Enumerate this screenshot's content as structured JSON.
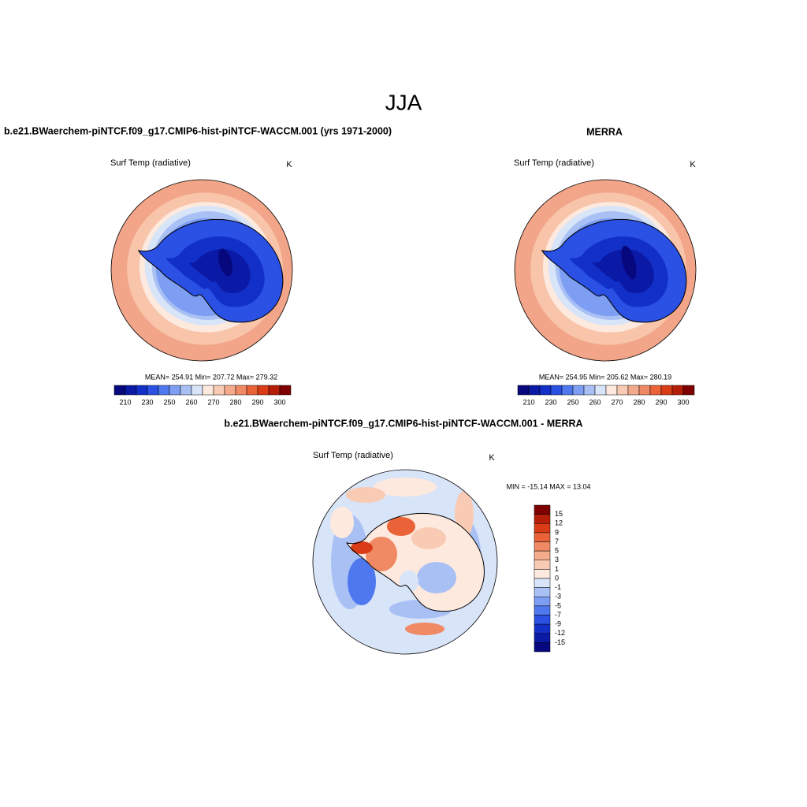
{
  "title": "JJA",
  "panels": [
    {
      "title": "b.e21.BWaerchem-piNTCF.f09_g17.CMIP6-hist-piNTCF-WACCM.001 (yrs 1971-2000)",
      "variable": "Surf Temp (radiative)",
      "units": "K",
      "stats": "MEAN= 254.91  Min= 207.72  Max= 279.32",
      "colorbar": {
        "orientation": "horizontal",
        "colors": [
          "#08087e",
          "#0a1aa6",
          "#1230c8",
          "#2a50e4",
          "#4f78ee",
          "#7d9ef2",
          "#a9c0f5",
          "#d8e4f8",
          "#fde9de",
          "#f9cbb4",
          "#f4ab8c",
          "#ef8a64",
          "#ea6238",
          "#d93c16",
          "#b51e08",
          "#7e0000"
        ],
        "labels": [
          "210",
          "230",
          "250",
          "260",
          "270",
          "280",
          "290",
          "300"
        ]
      }
    },
    {
      "title": "MERRA",
      "variable": "Surf Temp (radiative)",
      "units": "K",
      "stats": "MEAN= 254.95  Min= 205.62  Max= 280.19",
      "colorbar": {
        "orientation": "horizontal",
        "colors": [
          "#08087e",
          "#0a1aa6",
          "#1230c8",
          "#2a50e4",
          "#4f78ee",
          "#7d9ef2",
          "#a9c0f5",
          "#d8e4f8",
          "#fde9de",
          "#f9cbb4",
          "#f4ab8c",
          "#ef8a64",
          "#ea6238",
          "#d93c16",
          "#b51e08",
          "#7e0000"
        ],
        "labels": [
          "210",
          "230",
          "250",
          "260",
          "270",
          "280",
          "290",
          "300"
        ]
      }
    },
    {
      "title": "b.e21.BWaerchem-piNTCF.f09_g17.CMIP6-hist-piNTCF-WACCM.001 - MERRA",
      "variable": "Surf Temp (radiative)",
      "units": "K",
      "stats": "MIN = -15.14 MAX =  13.04",
      "colorbar": {
        "orientation": "vertical",
        "colors": [
          "#7e0000",
          "#b51e08",
          "#d93c16",
          "#ea6238",
          "#ef8a64",
          "#f4ab8c",
          "#f9cbb4",
          "#fde9de",
          "#d8e4f8",
          "#a9c0f5",
          "#7d9ef2",
          "#4f78ee",
          "#2a50e4",
          "#1230c8",
          "#0a1aa6",
          "#08087e"
        ],
        "labels": [
          "15",
          "12",
          "9",
          "7",
          "5",
          "3",
          "1",
          "0",
          "-1",
          "-3",
          "-5",
          "-7",
          "-9",
          "-12",
          "-15"
        ]
      }
    }
  ]
}
